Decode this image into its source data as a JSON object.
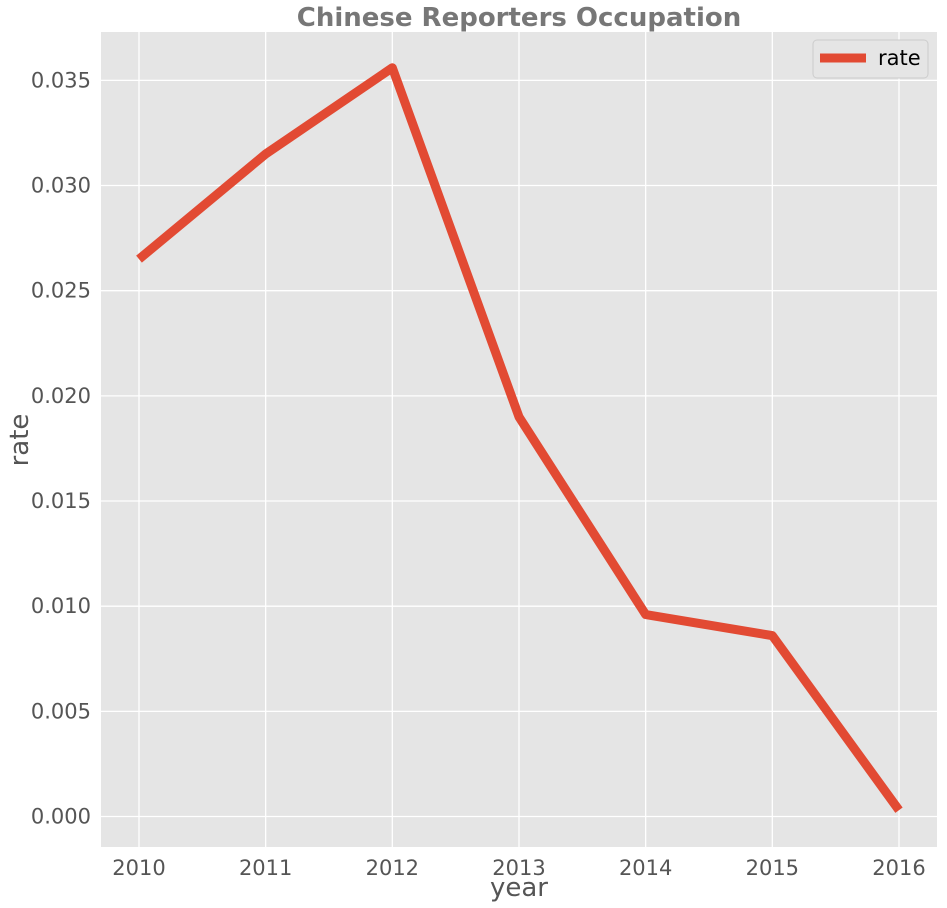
{
  "chart_data": {
    "type": "line",
    "title": "Chinese Reporters Occupation",
    "xlabel": "year",
    "ylabel": "rate",
    "x": [
      2010,
      2011,
      2012,
      2013,
      2014,
      2015,
      2016
    ],
    "x_tick_labels": [
      "2010",
      "2011",
      "2012",
      "2013",
      "2014",
      "2015",
      "2016"
    ],
    "y_tick_labels": [
      "0.000",
      "0.005",
      "0.010",
      "0.015",
      "0.020",
      "0.025",
      "0.030",
      "0.035"
    ],
    "y_ticks": [
      0.0,
      0.005,
      0.01,
      0.015,
      0.02,
      0.025,
      0.03,
      0.035
    ],
    "xlim": [
      2009.7,
      2016.3
    ],
    "ylim": [
      -0.00145,
      0.0373
    ],
    "series": [
      {
        "name": "rate",
        "color": "#E24A33",
        "values": [
          0.0265,
          0.0315,
          0.0356,
          0.019,
          0.0096,
          0.0086,
          0.0003
        ]
      }
    ],
    "grid": true,
    "legend_position": "top-right",
    "background": "#E5E5E5"
  }
}
